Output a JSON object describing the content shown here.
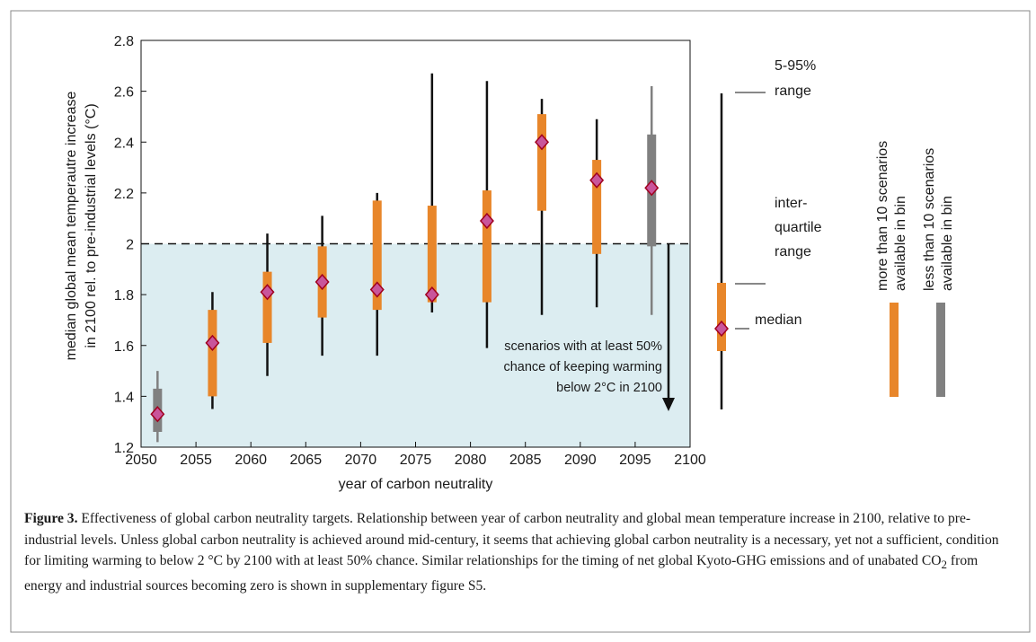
{
  "chart_data": {
    "type": "box",
    "xlabel": "year of carbon neutrality",
    "ylabel": [
      "median global mean temperautre increase",
      "in 2100 rel. to pre-industrial levels (°C)"
    ],
    "xlim": [
      2050,
      2100
    ],
    "xticks": [
      2050,
      2055,
      2060,
      2065,
      2070,
      2075,
      2080,
      2085,
      2090,
      2095,
      2100
    ],
    "ylim": [
      1.2,
      2.8
    ],
    "yticks": [
      1.2,
      1.4,
      1.6,
      1.8,
      2,
      2.2,
      2.4,
      2.6,
      2.8
    ],
    "threshold": 2,
    "annotation": [
      "scenarios with at least 50%",
      "chance of keeping warming",
      "below 2°C in 2100"
    ],
    "key_labels": {
      "range": [
        "5-95%",
        "range"
      ],
      "iqr": [
        "inter-",
        "quartile",
        "range"
      ],
      "median": "median"
    },
    "series": [
      {
        "name": "more than 10 scenarios available in bin",
        "color": "#e8862a",
        "x": [
          2056.5,
          2061.5,
          2066.5,
          2071.5,
          2076.5,
          2081.5,
          2086.5,
          2091.5
        ],
        "low": [
          1.35,
          1.48,
          1.56,
          1.56,
          1.73,
          1.59,
          1.72,
          1.75
        ],
        "q1": [
          1.4,
          1.61,
          1.71,
          1.74,
          1.77,
          1.77,
          2.13,
          1.96
        ],
        "median": [
          1.61,
          1.81,
          1.85,
          1.82,
          1.8,
          2.09,
          2.4,
          2.25
        ],
        "q3": [
          1.74,
          1.89,
          1.99,
          2.17,
          2.15,
          2.21,
          2.51,
          2.33
        ],
        "high": [
          1.81,
          2.04,
          2.11,
          2.2,
          2.67,
          2.64,
          2.57,
          2.49
        ]
      },
      {
        "name": "less than 10 scenarios available in bin",
        "color": "#808080",
        "x": [
          2051.5,
          2096.5
        ],
        "low": [
          1.22,
          1.72
        ],
        "q1": [
          1.26,
          1.99
        ],
        "median": [
          1.33,
          2.22
        ],
        "q3": [
          1.43,
          2.43
        ],
        "high": [
          1.5,
          2.62
        ]
      }
    ]
  },
  "caption": {
    "label": "Figure 3.",
    "text_1": " Effectiveness of global carbon neutrality targets. Relationship between year of carbon neutrality and global mean temperature increase in 2100, relative to pre-industrial levels. Unless global carbon neutrality is achieved around mid-century, it seems that achieving global carbon neutrality is a necessary, yet not a sufficient, condition for limiting warming to below 2 °C by 2100 with at least 50% chance. Similar relationships for the timing of net global Kyoto-GHG emissions and of unabated CO",
    "subscript": "2",
    "text_2": " from energy and industrial sources becoming zero is shown in supplementary figure S5."
  }
}
